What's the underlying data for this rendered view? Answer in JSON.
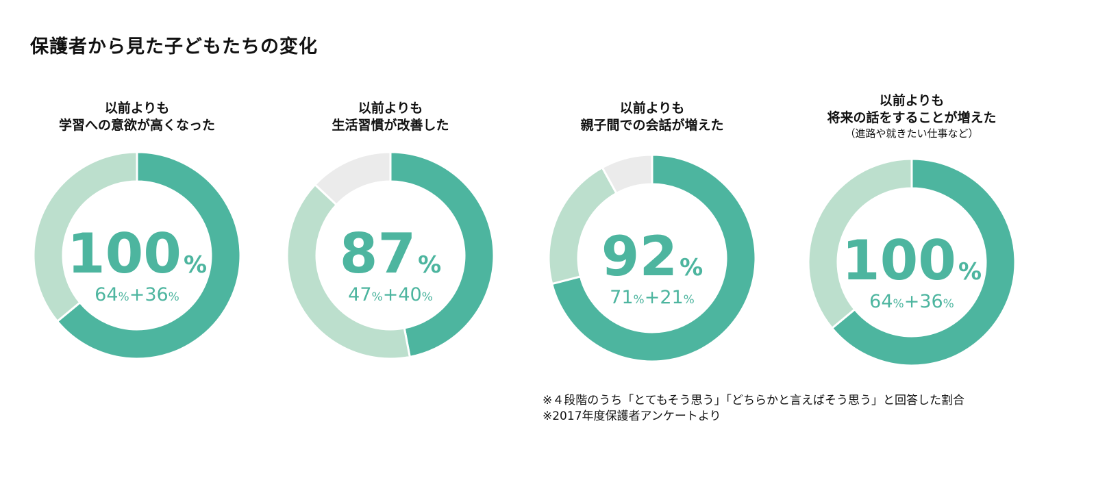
{
  "page": {
    "title": "保護者から見た子どもたちの変化"
  },
  "colors": {
    "dark": "#4db59f",
    "light": "#bcdfcd",
    "grey": "#ebebeb",
    "text_green": "#4db59f"
  },
  "chart_data": [
    {
      "type": "pie",
      "title_line1": "以前よりも",
      "title_line2": "学習への意欲が高くなった",
      "total": "100",
      "unit": "%",
      "breakdown_a": "64",
      "breakdown_b": "36",
      "slices": [
        {
          "value": 64,
          "color": "dark"
        },
        {
          "value": 36,
          "color": "light"
        }
      ]
    },
    {
      "type": "pie",
      "title_line1": "以前よりも",
      "title_line2": "生活習慣が改善した",
      "total": "87",
      "unit": "%",
      "breakdown_a": "47",
      "breakdown_b": "40",
      "slices": [
        {
          "value": 47,
          "color": "dark"
        },
        {
          "value": 40,
          "color": "light"
        },
        {
          "value": 13,
          "color": "grey"
        }
      ]
    },
    {
      "type": "pie",
      "title_line1": "以前よりも",
      "title_line2": "親子間での会話が増えた",
      "total": "92",
      "unit": "%",
      "breakdown_a": "71",
      "breakdown_b": "21",
      "slices": [
        {
          "value": 71,
          "color": "dark"
        },
        {
          "value": 21,
          "color": "light"
        },
        {
          "value": 8,
          "color": "grey"
        }
      ]
    },
    {
      "type": "pie",
      "title_line1": "以前よりも",
      "title_line2": "将来の話をすることが増えた",
      "title_line3": "（進路や就きたい仕事など）",
      "total": "100",
      "unit": "%",
      "breakdown_a": "64",
      "breakdown_b": "36",
      "slices": [
        {
          "value": 64,
          "color": "dark"
        },
        {
          "value": 36,
          "color": "light"
        }
      ]
    }
  ],
  "notes": {
    "line1": "※４段階のうち「とてもそう思う」「どちらかと言えばそう思う」と回答した割合",
    "line2": "※2017年度保護者アンケートより"
  }
}
